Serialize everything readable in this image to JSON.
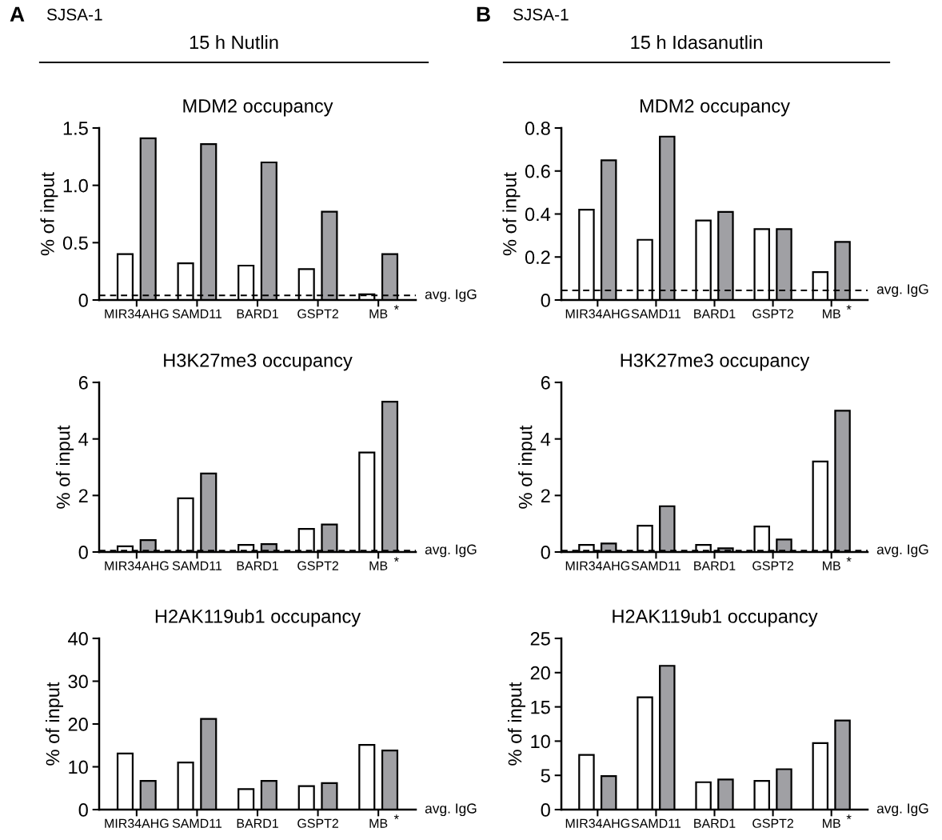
{
  "chart_data": [
    {
      "type": "bar",
      "title": "MDM2 occupancy",
      "ylabel": "% of input",
      "categories": [
        "MIR34AHG",
        "SAMD11",
        "BARD1",
        "GSPT2",
        "MB"
      ],
      "series": [
        {
          "color": "#ffffff",
          "values": [
            0.4,
            0.32,
            0.3,
            0.27,
            0.05
          ]
        },
        {
          "color": "#a0a0a4",
          "values": [
            1.41,
            1.36,
            1.2,
            0.77,
            0.4
          ]
        }
      ],
      "ylim": [
        0,
        1.5
      ],
      "yticks": [
        0,
        {
          "value": 0.5,
          "label": "0.5"
        },
        {
          "value": 1.0,
          "label": "1.0"
        },
        {
          "value": 1.5,
          "label": "1.5"
        }
      ],
      "ref_lines": [
        {
          "axis": "y",
          "value": 0.04,
          "label": "avg. IgG",
          "line_style": "dashed",
          "color": "#000000"
        }
      ],
      "annotations": [
        "A",
        "SJSA-1",
        "15 h Nutlin",
        "*"
      ],
      "grid": false,
      "legend": false
    },
    {
      "type": "bar",
      "title": "MDM2 occupancy",
      "ylabel": "% of input",
      "categories": [
        "MIR34AHG",
        "SAMD11",
        "BARD1",
        "GSPT2",
        "MB"
      ],
      "series": [
        {
          "color": "#ffffff",
          "values": [
            0.42,
            0.28,
            0.37,
            0.33,
            0.13
          ]
        },
        {
          "color": "#a0a0a4",
          "values": [
            0.65,
            0.76,
            0.41,
            0.33,
            0.27
          ]
        }
      ],
      "ylim": [
        0,
        0.8
      ],
      "yticks": [
        0,
        0.2,
        0.4,
        0.6,
        0.8
      ],
      "ref_lines": [
        {
          "axis": "y",
          "value": 0.045,
          "label": "avg. IgG",
          "line_style": "dashed",
          "color": "#000000"
        }
      ],
      "annotations": [
        "B",
        "SJSA-1",
        "15 h Idasanutlin",
        "*"
      ],
      "grid": false,
      "legend": false
    },
    {
      "type": "bar",
      "title": "H3K27me3 occupancy",
      "ylabel": "% of input",
      "categories": [
        "MIR34AHG",
        "SAMD11",
        "BARD1",
        "GSPT2",
        "MB"
      ],
      "series": [
        {
          "color": "#ffffff",
          "values": [
            0.2,
            1.9,
            0.25,
            0.82,
            3.52
          ]
        },
        {
          "color": "#a0a0a4",
          "values": [
            0.42,
            2.78,
            0.28,
            0.97,
            5.32
          ]
        }
      ],
      "ylim": [
        0,
        6
      ],
      "yticks": [
        0,
        2,
        4,
        6
      ],
      "ref_lines": [
        {
          "axis": "y",
          "value": 0.05,
          "label": "avg. IgG",
          "line_style": "dashed",
          "color": "#000000"
        }
      ],
      "annotations": [
        "*"
      ],
      "grid": false,
      "legend": false
    },
    {
      "type": "bar",
      "title": "H3K27me3 occupancy",
      "ylabel": "% of input",
      "categories": [
        "MIR34AHG",
        "SAMD11",
        "BARD1",
        "GSPT2",
        "MB"
      ],
      "series": [
        {
          "color": "#ffffff",
          "values": [
            0.25,
            0.93,
            0.25,
            0.9,
            3.2
          ]
        },
        {
          "color": "#a0a0a4",
          "values": [
            0.3,
            1.62,
            0.13,
            0.44,
            5.0
          ]
        }
      ],
      "ylim": [
        0,
        6
      ],
      "yticks": [
        0,
        2,
        4,
        6
      ],
      "ref_lines": [
        {
          "axis": "y",
          "value": 0.05,
          "label": "avg. IgG",
          "line_style": "dashed",
          "color": "#000000"
        }
      ],
      "annotations": [
        "*"
      ],
      "grid": false,
      "legend": false
    },
    {
      "type": "bar",
      "title": "H2AK119ub1 occupancy",
      "ylabel": "% of input",
      "categories": [
        "MIR34AHG",
        "SAMD11",
        "BARD1",
        "GSPT2",
        "MB"
      ],
      "series": [
        {
          "color": "#ffffff",
          "values": [
            13.1,
            11.0,
            4.8,
            5.5,
            15.1
          ]
        },
        {
          "color": "#a0a0a4",
          "values": [
            6.7,
            21.2,
            6.7,
            6.2,
            13.8
          ]
        }
      ],
      "ylim": [
        0,
        40
      ],
      "yticks": [
        0,
        10,
        20,
        30,
        40
      ],
      "annotations": [
        "avg. IgG",
        "*"
      ],
      "grid": false,
      "legend": false
    },
    {
      "type": "bar",
      "title": "H2AK119ub1 occupancy",
      "ylabel": "% of input",
      "categories": [
        "MIR34AHG",
        "SAMD11",
        "BARD1",
        "GSPT2",
        "MB"
      ],
      "series": [
        {
          "color": "#ffffff",
          "values": [
            8.0,
            16.4,
            4.0,
            4.2,
            9.7
          ]
        },
        {
          "color": "#a0a0a4",
          "values": [
            4.9,
            21.0,
            4.4,
            5.9,
            13.0
          ]
        }
      ],
      "ylim": [
        0,
        25
      ],
      "yticks": [
        0,
        5,
        10,
        15,
        20,
        25
      ],
      "annotations": [
        "avg. IgG",
        "*"
      ],
      "grid": false,
      "legend": false
    }
  ]
}
